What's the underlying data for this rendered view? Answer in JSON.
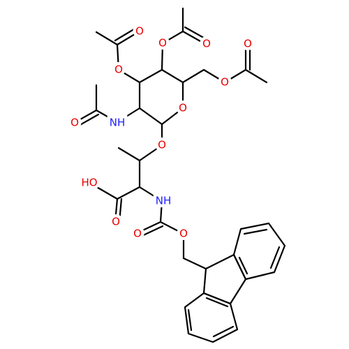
{
  "atoms": [
    "O",
    "O",
    "O",
    "O",
    "O",
    "O",
    "O",
    "NH",
    "O",
    "O",
    "HO",
    "O",
    "NH",
    "O",
    "O"
  ]
}
